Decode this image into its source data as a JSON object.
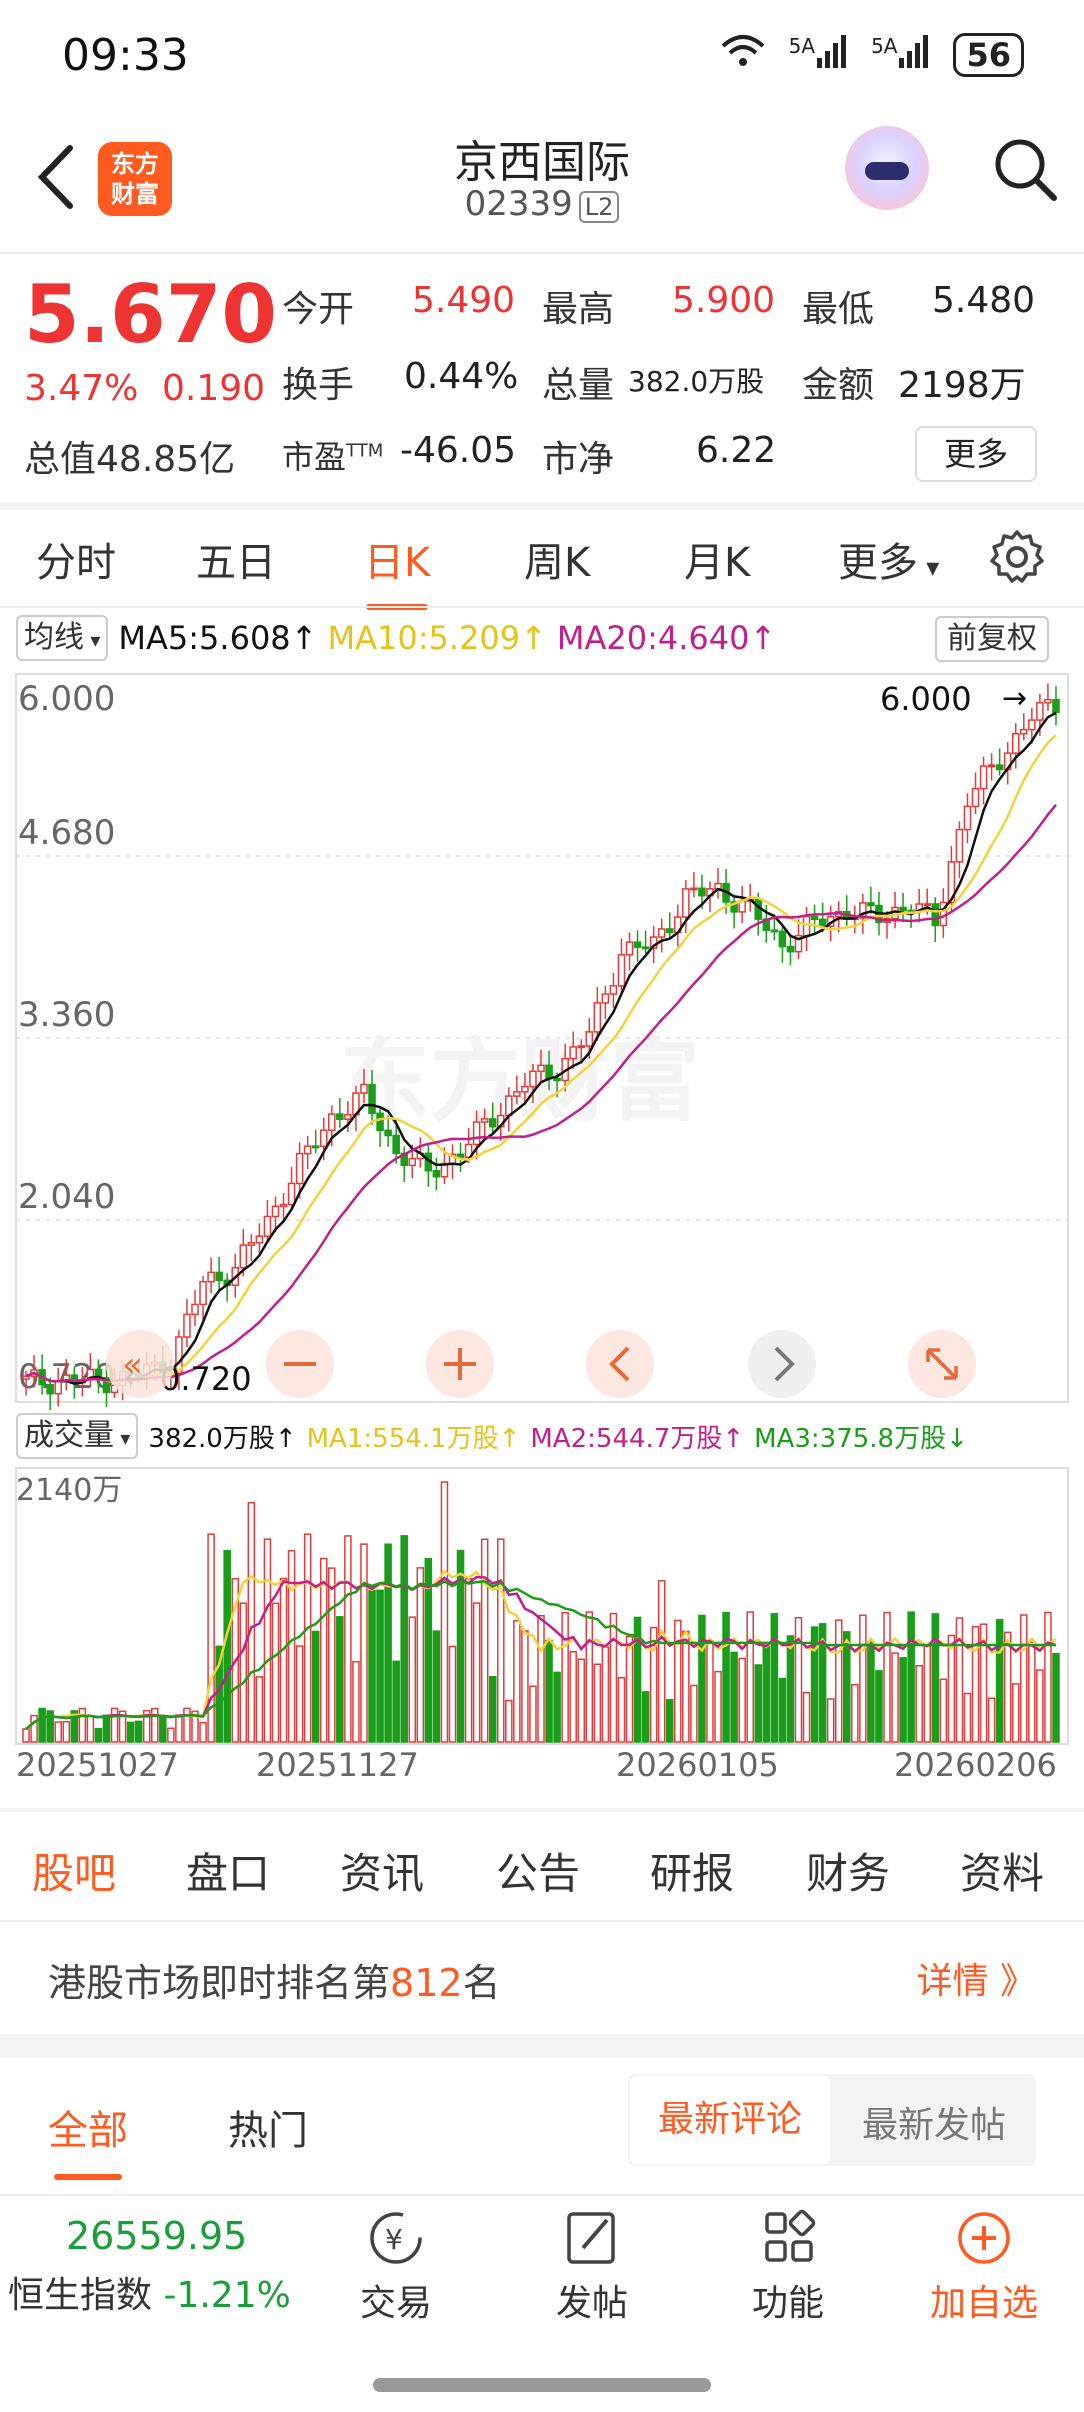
{
  "status": {
    "time": "09:33",
    "signal1": "5A",
    "signal2": "5A",
    "battery": "56"
  },
  "header": {
    "logo_line1": "东方",
    "logo_line2": "财富",
    "title": "京西国际",
    "code": "02339",
    "level": "L2"
  },
  "quote": {
    "price": "5.670",
    "change_pct": "3.47%",
    "change": "0.190",
    "open_label": "今开",
    "open": "5.490",
    "high_label": "最高",
    "high": "5.900",
    "low_label": "最低",
    "low": "5.480",
    "turnover_label": "换手",
    "turnover": "0.44%",
    "volume_label": "总量",
    "volume": "382.0万股",
    "amount_label": "金额",
    "amount": "2198万",
    "mcap_label": "总值",
    "mcap": "48.85亿",
    "pe_label": "市盈",
    "pe_sup": "TTM",
    "pe": "-46.05",
    "pb_label": "市净",
    "pb": "6.22",
    "more": "更多"
  },
  "chart_tabs": [
    "分时",
    "五日",
    "日K",
    "周K",
    "月K",
    "更多"
  ],
  "chart_tab_active": 2,
  "kline": {
    "indicator_select": "均线",
    "ma5": "MA5:5.608↑",
    "ma10": "MA10:5.209↑",
    "ma20": "MA20:4.640↑",
    "adjust": "前复权",
    "y_labels": [
      "6.000",
      "4.680",
      "3.360",
      "2.040",
      "0.720"
    ],
    "max_marker": "6.000",
    "min_marker": "0.720",
    "watermark": "东方财富",
    "volume_select": "成交量",
    "vol_now": "382.0万股↑",
    "vol_ma1": "MA1:554.1万股↑",
    "vol_ma2": "MA2:544.7万股↑",
    "vol_ma3": "MA3:375.8万股↓",
    "vol_max": "2140万",
    "x_labels": [
      "20251027",
      "20251127",
      "20260105",
      "20260206"
    ],
    "colors": {
      "up": "#e33b3b",
      "down": "#1a9e1a",
      "ma5": "#111111",
      "ma10": "#f2d33c",
      "ma20": "#c21f8a"
    }
  },
  "chart_data": {
    "type": "candlestick",
    "y_range": [
      0.72,
      6.0
    ],
    "y_ticks": [
      6.0,
      4.68,
      3.36,
      2.04,
      0.72
    ],
    "x_ticks": [
      "20251027",
      "20251127",
      "20260105",
      "20260206"
    ],
    "last": {
      "open": 5.49,
      "high": 5.9,
      "low": 5.48,
      "close": 5.67
    },
    "ma": {
      "MA5": 5.608,
      "MA10": 5.209,
      "MA20": 4.64
    },
    "volume": {
      "current": "382.0万股",
      "MA1": "554.1万股",
      "MA2": "544.7万股",
      "MA3": "375.8万股",
      "max": "2140万"
    }
  },
  "sections": [
    "股吧",
    "盘口",
    "资讯",
    "公告",
    "研报",
    "财务",
    "资料"
  ],
  "section_active": 0,
  "rank": {
    "prefix": "港股市场即时排名第",
    "number": "812",
    "suffix": "名",
    "detail": "详情 》"
  },
  "feed": {
    "tabs": [
      "全部",
      "热门"
    ],
    "sort": [
      "最新评论",
      "最新发帖"
    ]
  },
  "bottom": {
    "index_value": "26559.95",
    "index_name": "恒生指数",
    "index_change": "-1.21%",
    "trade": "交易",
    "post": "发帖",
    "func": "功能",
    "add": "加自选"
  }
}
